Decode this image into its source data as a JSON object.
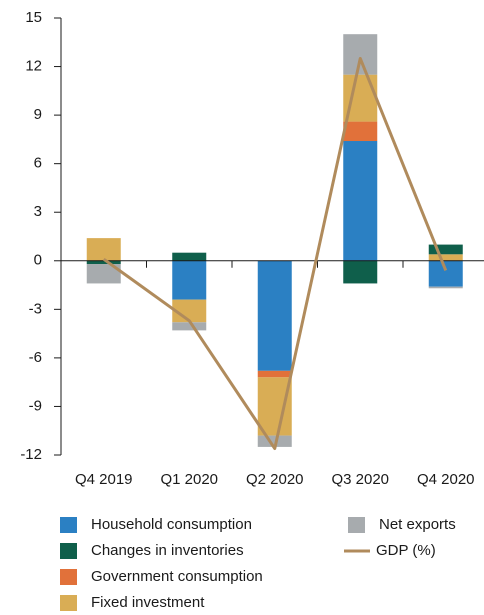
{
  "chart_data": {
    "type": "bar",
    "categories": [
      "Q4 2019",
      "Q1 2020",
      "Q2 2020",
      "Q3 2020",
      "Q4 2020"
    ],
    "series": [
      {
        "name": "Household consumption",
        "color": "#2b80c3",
        "values": [
          0,
          -2.4,
          -6.8,
          7.4,
          -1.6
        ]
      },
      {
        "name": "Changes in inventories",
        "color": "#0f5f4b",
        "values": [
          -0.2,
          0.5,
          0,
          -1.4,
          0.6
        ]
      },
      {
        "name": "Government consumption",
        "color": "#e1713a",
        "values": [
          0,
          0,
          -0.4,
          1.2,
          0
        ]
      },
      {
        "name": "Fixed investment",
        "color": "#d9ad55",
        "values": [
          1.4,
          -1.4,
          -3.6,
          2.9,
          0.4
        ]
      },
      {
        "name": "Net exports",
        "color": "#a7abae",
        "values": [
          -1.2,
          -0.5,
          -0.7,
          2.5,
          -0.1
        ]
      },
      {
        "name": "GDP (%)",
        "color": "#b08b5c",
        "type": "line",
        "values": [
          0.1,
          -3.7,
          -11.6,
          12.5,
          -0.6
        ]
      }
    ],
    "ylim": [
      -12,
      15
    ],
    "yticks": [
      -12,
      -9,
      -6,
      -3,
      0,
      3,
      6,
      9,
      12,
      15
    ]
  }
}
